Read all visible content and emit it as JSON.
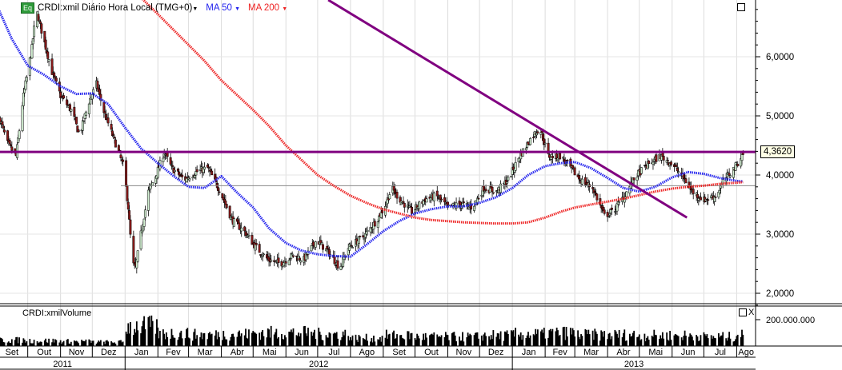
{
  "legend": {
    "badge": "Eq",
    "symbol": "CRDI:xmil Diário Hora Local (TMG+0)",
    "ma50": "MA 50",
    "ma200": "MA 200",
    "caret": "▼"
  },
  "volume_panel": {
    "title": "CRDI:xmilVolume",
    "axis_label": "200.000.000",
    "close": "X"
  },
  "last_price_label": "4,3620",
  "colors": {
    "up_candle": "#cfeccf",
    "down_candle": "#8b1a1a",
    "ma50": "#2a2aee",
    "ma200": "#ee2a2a",
    "trendlines": "#800080",
    "support_line": "#888888"
  },
  "chart_data": {
    "type": "candlestick",
    "price_axis": {
      "ticks": [
        "6,0000",
        "5,0000",
        "4,0000",
        "3,0000",
        "2,0000"
      ],
      "tick_values": [
        6,
        5,
        4,
        3,
        2
      ],
      "range": [
        1.7,
        6.96
      ]
    },
    "x_axis": {
      "months": [
        "Set",
        "Out",
        "Nov",
        "Dez",
        "Jan",
        "Fev",
        "Mar",
        "Abr",
        "Mai",
        "Jun",
        "Jul",
        "Ago",
        "Set",
        "Out",
        "Nov",
        "Dez",
        "Jan",
        "Fev",
        "Mar",
        "Abr",
        "Mai",
        "Jun",
        "Jul",
        "Ago"
      ],
      "years": [
        "2011",
        "2012",
        "2013"
      ],
      "range": [
        "2011-09-01",
        "2013-08-12"
      ]
    },
    "price_path": [
      [
        "2011-09-05",
        4.93
      ],
      [
        "2011-09-12",
        4.53
      ],
      [
        "2011-09-20",
        4.32
      ],
      [
        "2011-09-27",
        5.34
      ],
      [
        "2011-10-05",
        6.15
      ],
      [
        "2011-10-09",
        6.8
      ],
      [
        "2011-10-16",
        6.3
      ],
      [
        "2011-10-24",
        5.74
      ],
      [
        "2011-11-01",
        5.34
      ],
      [
        "2011-11-12",
        5.07
      ],
      [
        "2011-11-19",
        4.66
      ],
      [
        "2011-11-27",
        5.2
      ],
      [
        "2011-12-05",
        5.54
      ],
      [
        "2011-12-12",
        5.07
      ],
      [
        "2011-12-23",
        4.53
      ],
      [
        "2011-12-31",
        4.12
      ],
      [
        "2012-01-04",
        3.45
      ],
      [
        "2012-01-08",
        2.5
      ],
      [
        "2012-01-11",
        2.43
      ],
      [
        "2012-01-15",
        2.9
      ],
      [
        "2012-01-23",
        3.72
      ],
      [
        "2012-01-30",
        3.99
      ],
      [
        "2012-02-07",
        4.39
      ],
      [
        "2012-02-14",
        4.12
      ],
      [
        "2012-02-26",
        3.92
      ],
      [
        "2012-03-08",
        4.05
      ],
      [
        "2012-03-19",
        4.12
      ],
      [
        "2012-03-31",
        3.72
      ],
      [
        "2012-04-11",
        3.24
      ],
      [
        "2012-04-23",
        3.04
      ],
      [
        "2012-05-04",
        2.77
      ],
      [
        "2012-05-15",
        2.57
      ],
      [
        "2012-05-27",
        2.5
      ],
      [
        "2012-06-07",
        2.64
      ],
      [
        "2012-06-18",
        2.57
      ],
      [
        "2012-06-30",
        2.9
      ],
      [
        "2012-07-11",
        2.7
      ],
      [
        "2012-07-22",
        2.43
      ],
      [
        "2012-07-30",
        2.77
      ],
      [
        "2012-08-14",
        2.97
      ],
      [
        "2012-08-26",
        3.24
      ],
      [
        "2012-09-02",
        3.45
      ],
      [
        "2012-09-09",
        3.78
      ],
      [
        "2012-09-17",
        3.58
      ],
      [
        "2012-09-28",
        3.38
      ],
      [
        "2012-10-10",
        3.58
      ],
      [
        "2012-10-21",
        3.65
      ],
      [
        "2012-11-01",
        3.45
      ],
      [
        "2012-11-13",
        3.51
      ],
      [
        "2012-11-24",
        3.45
      ],
      [
        "2012-12-05",
        3.78
      ],
      [
        "2012-12-17",
        3.72
      ],
      [
        "2012-12-28",
        3.92
      ],
      [
        "2013-01-08",
        4.32
      ],
      [
        "2013-01-20",
        4.66
      ],
      [
        "2013-01-27",
        4.8
      ],
      [
        "2013-02-04",
        4.32
      ],
      [
        "2013-02-15",
        4.32
      ],
      [
        "2013-02-25",
        4.12
      ],
      [
        "2013-03-06",
        3.92
      ],
      [
        "2013-03-18",
        3.78
      ],
      [
        "2013-03-29",
        3.31
      ],
      [
        "2013-04-06",
        3.38
      ],
      [
        "2013-04-17",
        3.65
      ],
      [
        "2013-04-28",
        3.99
      ],
      [
        "2013-05-10",
        4.19
      ],
      [
        "2013-05-21",
        4.32
      ],
      [
        "2013-06-01",
        4.19
      ],
      [
        "2013-06-13",
        3.92
      ],
      [
        "2013-06-20",
        3.72
      ],
      [
        "2013-07-01",
        3.58
      ],
      [
        "2013-07-13",
        3.65
      ],
      [
        "2013-07-20",
        3.92
      ],
      [
        "2013-07-30",
        4.12
      ],
      [
        "2013-08-07",
        4.362
      ]
    ],
    "series": [
      {
        "name": "MA 50",
        "points": [
          [
            "2011-09-01",
            6.9
          ],
          [
            "2011-09-16",
            6.3
          ],
          [
            "2011-10-01",
            5.85
          ],
          [
            "2011-10-16",
            5.7
          ],
          [
            "2011-11-01",
            5.5
          ],
          [
            "2011-11-16",
            5.37
          ],
          [
            "2011-12-01",
            5.38
          ],
          [
            "2011-12-16",
            5.2
          ],
          [
            "2012-01-01",
            4.8
          ],
          [
            "2012-01-16",
            4.45
          ],
          [
            "2012-02-01",
            4.2
          ],
          [
            "2012-02-16",
            3.98
          ],
          [
            "2012-03-01",
            3.8
          ],
          [
            "2012-03-16",
            3.78
          ],
          [
            "2012-04-01",
            3.98
          ],
          [
            "2012-04-16",
            3.7
          ],
          [
            "2012-05-01",
            3.45
          ],
          [
            "2012-05-16",
            3.1
          ],
          [
            "2012-06-01",
            2.85
          ],
          [
            "2012-06-16",
            2.72
          ],
          [
            "2012-07-01",
            2.66
          ],
          [
            "2012-07-16",
            2.63
          ],
          [
            "2012-08-01",
            2.62
          ],
          [
            "2012-08-16",
            2.82
          ],
          [
            "2012-09-01",
            3.05
          ],
          [
            "2012-09-16",
            3.22
          ],
          [
            "2012-10-01",
            3.35
          ],
          [
            "2012-10-16",
            3.42
          ],
          [
            "2012-11-01",
            3.47
          ],
          [
            "2012-11-16",
            3.47
          ],
          [
            "2012-12-01",
            3.53
          ],
          [
            "2012-12-16",
            3.62
          ],
          [
            "2013-01-01",
            3.78
          ],
          [
            "2013-01-16",
            4.0
          ],
          [
            "2013-02-01",
            4.15
          ],
          [
            "2013-02-16",
            4.2
          ],
          [
            "2013-03-01",
            4.22
          ],
          [
            "2013-03-16",
            4.12
          ],
          [
            "2013-04-01",
            3.95
          ],
          [
            "2013-04-16",
            3.78
          ],
          [
            "2013-05-01",
            3.72
          ],
          [
            "2013-05-16",
            3.8
          ],
          [
            "2013-06-01",
            3.96
          ],
          [
            "2013-06-16",
            4.05
          ],
          [
            "2013-07-01",
            4.02
          ],
          [
            "2013-07-16",
            3.95
          ],
          [
            "2013-08-01",
            3.9
          ],
          [
            "2013-08-07",
            3.89
          ]
        ]
      },
      {
        "name": "MA 200",
        "points": [
          [
            "2012-01-16",
            7.0
          ],
          [
            "2012-02-01",
            6.72
          ],
          [
            "2012-02-16",
            6.45
          ],
          [
            "2012-03-01",
            6.2
          ],
          [
            "2012-03-16",
            5.93
          ],
          [
            "2012-04-01",
            5.6
          ],
          [
            "2012-04-16",
            5.35
          ],
          [
            "2012-05-01",
            5.1
          ],
          [
            "2012-05-16",
            4.83
          ],
          [
            "2012-06-01",
            4.5
          ],
          [
            "2012-06-16",
            4.25
          ],
          [
            "2012-07-01",
            4.0
          ],
          [
            "2012-07-16",
            3.82
          ],
          [
            "2012-08-01",
            3.65
          ],
          [
            "2012-08-16",
            3.53
          ],
          [
            "2012-09-01",
            3.42
          ],
          [
            "2012-09-16",
            3.35
          ],
          [
            "2012-10-01",
            3.28
          ],
          [
            "2012-10-16",
            3.24
          ],
          [
            "2012-11-01",
            3.22
          ],
          [
            "2012-11-16",
            3.2
          ],
          [
            "2012-12-01",
            3.19
          ],
          [
            "2012-12-16",
            3.18
          ],
          [
            "2013-01-01",
            3.18
          ],
          [
            "2013-01-16",
            3.2
          ],
          [
            "2013-02-01",
            3.28
          ],
          [
            "2013-02-16",
            3.38
          ],
          [
            "2013-03-01",
            3.45
          ],
          [
            "2013-03-16",
            3.5
          ],
          [
            "2013-04-01",
            3.55
          ],
          [
            "2013-04-16",
            3.6
          ],
          [
            "2013-05-01",
            3.66
          ],
          [
            "2013-05-16",
            3.72
          ],
          [
            "2013-06-01",
            3.77
          ],
          [
            "2013-06-16",
            3.8
          ],
          [
            "2013-07-01",
            3.82
          ],
          [
            "2013-07-16",
            3.85
          ],
          [
            "2013-08-01",
            3.87
          ],
          [
            "2013-08-07",
            3.88
          ]
        ]
      }
    ],
    "annotations": {
      "trendline": [
        [
          "2012-07-11",
          6.96
        ],
        [
          "2013-06-15",
          3.28
        ]
      ],
      "horizontal_resistance": 4.39,
      "horizontal_support": {
        "value": 3.82,
        "from": "2011-12-28"
      }
    },
    "volume": {
      "axis_tick_value": 200000000,
      "monthly_level": [
        [
          "2011-09",
          45000000
        ],
        [
          "2011-10",
          40000000
        ],
        [
          "2011-11",
          35000000
        ],
        [
          "2011-12",
          30000000
        ],
        [
          "2012-01",
          150000000
        ],
        [
          "2012-02",
          95000000
        ],
        [
          "2012-03",
          85000000
        ],
        [
          "2012-04",
          90000000
        ],
        [
          "2012-05",
          100000000
        ],
        [
          "2012-06",
          100000000
        ],
        [
          "2012-07",
          90000000
        ],
        [
          "2012-08",
          60000000
        ],
        [
          "2012-09",
          80000000
        ],
        [
          "2012-10",
          70000000
        ],
        [
          "2012-11",
          70000000
        ],
        [
          "2012-12",
          80000000
        ],
        [
          "2013-01",
          90000000
        ],
        [
          "2013-02",
          100000000
        ],
        [
          "2013-03",
          85000000
        ],
        [
          "2013-04",
          85000000
        ],
        [
          "2013-05",
          80000000
        ],
        [
          "2013-06",
          80000000
        ],
        [
          "2013-07",
          70000000
        ],
        [
          "2013-08",
          90000000
        ]
      ]
    }
  }
}
